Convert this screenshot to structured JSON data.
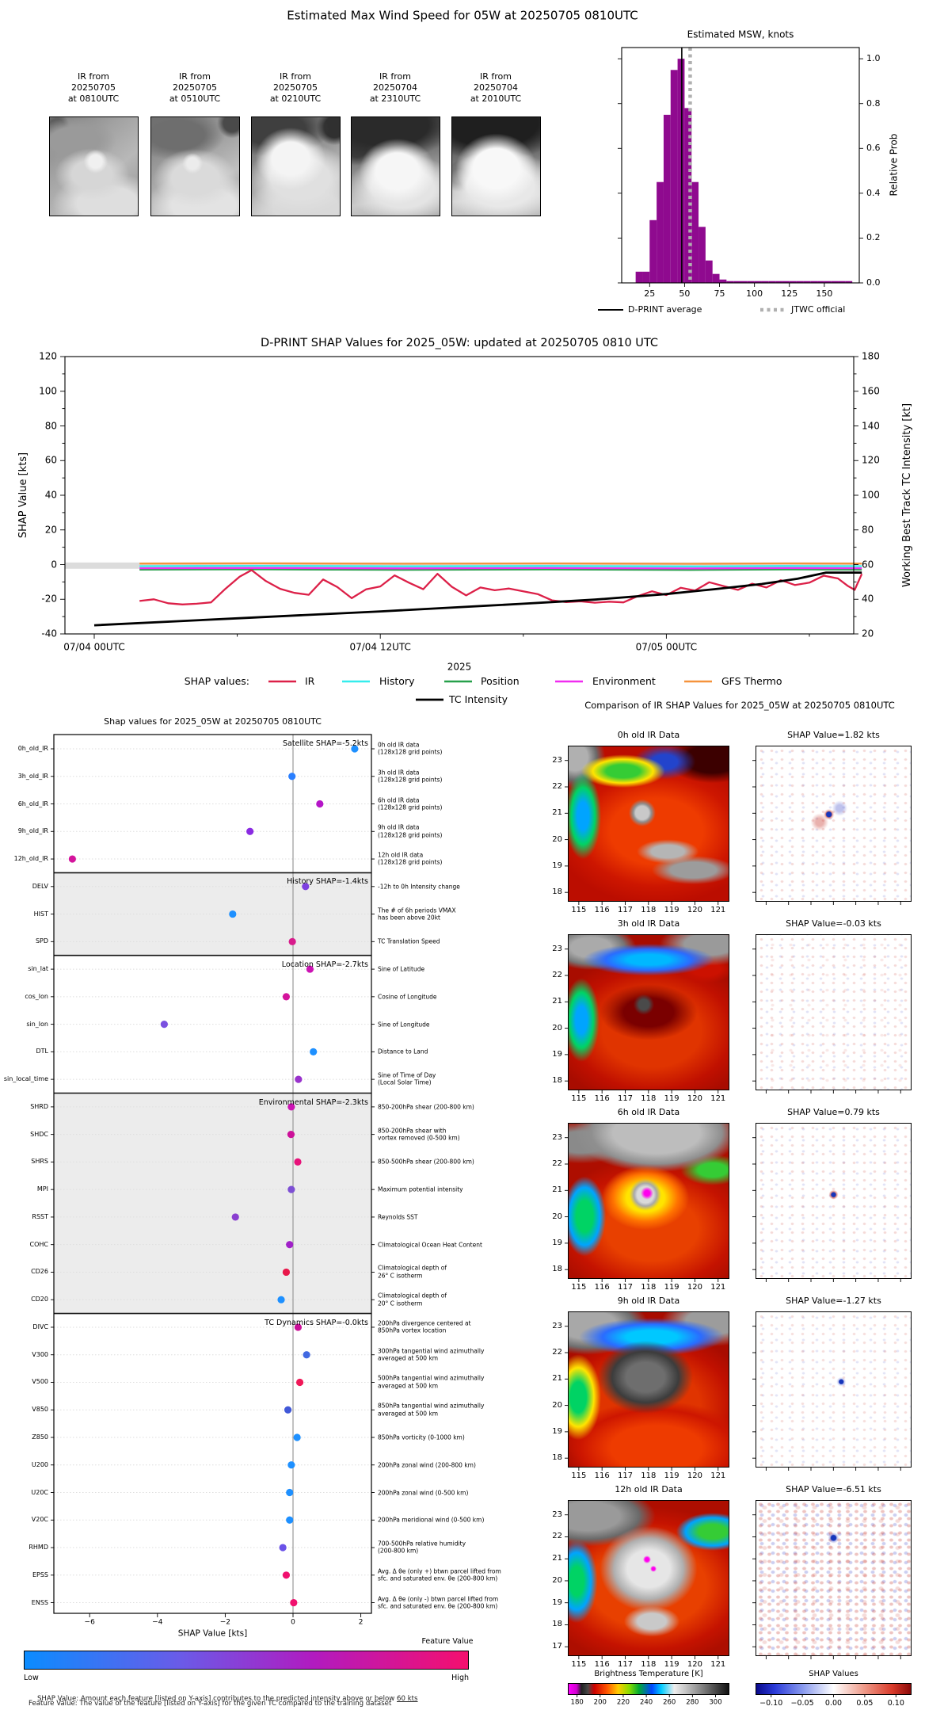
{
  "page_title": "Estimated Max Wind Speed for 05W at 20250705 0810UTC",
  "thumbnails": {
    "items": [
      {
        "label": "IR from\n20250705\nat 0810UTC"
      },
      {
        "label": "IR from\n20250705\nat 0510UTC"
      },
      {
        "label": "IR from\n20250705\nat 0210UTC"
      },
      {
        "label": "IR from\n20250704\nat 2310UTC"
      },
      {
        "label": "IR from\n20250704\nat 2010UTC"
      }
    ]
  },
  "chart_data": [
    {
      "id": "msw_histogram",
      "type": "bar",
      "title": "Estimated MSW, knots",
      "ylabel": "Relative Prob",
      "xlim": [
        5,
        175
      ],
      "ylim": [
        0,
        1.05
      ],
      "xticks": [
        25,
        50,
        75,
        100,
        125,
        150
      ],
      "yticks": [
        "0.0",
        "0.2",
        "0.4",
        "0.6",
        "0.8",
        "1.0"
      ],
      "bar_color": "#8f0a8f",
      "bin_width": 5,
      "bins_start": [
        15,
        20,
        25,
        30,
        35,
        40,
        45,
        50,
        55,
        60,
        65,
        70,
        75,
        80,
        85,
        90,
        95,
        100,
        105,
        110,
        115,
        120,
        125,
        130,
        135,
        140,
        145,
        150,
        155,
        160,
        165
      ],
      "heights": [
        0.05,
        0.05,
        0.28,
        0.45,
        0.75,
        0.95,
        1.0,
        0.78,
        0.45,
        0.25,
        0.1,
        0.04,
        0.015,
        0.008,
        0.008,
        0.008,
        0.008,
        0.008,
        0.008,
        0.008,
        0.008,
        0.008,
        0.008,
        0.008,
        0.008,
        0.008,
        0.008,
        0.008,
        0.008,
        0.008,
        0.008
      ],
      "vlines": [
        {
          "label": "D-PRINT average",
          "x": 48,
          "style": "solid",
          "color": "#000000"
        },
        {
          "label": "JTWC official",
          "x": 54,
          "style": "dotted",
          "color": "#b0b0b0"
        }
      ]
    },
    {
      "id": "shap_timeseries",
      "type": "line",
      "title": "D-PRINT SHAP Values for 2025_05W: updated at 20250705 0810 UTC",
      "ylabel_left": "SHAP Value [kts]",
      "ylabel_right": "Working Best Track TC Intensity [kt]",
      "xlabel": "2025",
      "ylim_left": [
        -40,
        120
      ],
      "ylim_right": [
        20,
        180
      ],
      "yticks_left": [
        "120",
        "100",
        "80",
        "60",
        "40",
        "20",
        "0",
        "-20",
        "-40"
      ],
      "yticks_right": [
        "180",
        "160",
        "140",
        "120",
        "100",
        "80",
        "60",
        "40",
        "20"
      ],
      "x_hours_range": [
        -1.2,
        32.2
      ],
      "xticks": [
        {
          "h": 0,
          "label": "07/04 00UTC"
        },
        {
          "h": 12,
          "label": "07/04 12UTC"
        },
        {
          "h": 24,
          "label": "07/05 00UTC"
        }
      ],
      "zero_band": [
        -2.4,
        1.2
      ],
      "legend_title": "SHAP values:",
      "series": [
        {
          "name": "IR",
          "color": "#dc2048",
          "points": [
            [
              1.9,
              -21
            ],
            [
              2.5,
              -20
            ],
            [
              3.1,
              -22.3
            ],
            [
              3.7,
              -23
            ],
            [
              4.3,
              -22.6
            ],
            [
              4.9,
              -21.8
            ],
            [
              5.5,
              -14
            ],
            [
              6.1,
              -7
            ],
            [
              6.6,
              -3.2
            ],
            [
              7.2,
              -9.5
            ],
            [
              7.8,
              -14
            ],
            [
              8.4,
              -16.3
            ],
            [
              9.0,
              -17.4
            ],
            [
              9.6,
              -8.6
            ],
            [
              10.2,
              -13
            ],
            [
              10.8,
              -19.4
            ],
            [
              11.4,
              -14.3
            ],
            [
              12.0,
              -12.6
            ],
            [
              12.6,
              -6.2
            ],
            [
              13.2,
              -10.4
            ],
            [
              13.8,
              -14.2
            ],
            [
              14.4,
              -5.3
            ],
            [
              15.0,
              -12.8
            ],
            [
              15.6,
              -17.8
            ],
            [
              16.2,
              -13.2
            ],
            [
              16.8,
              -14.8
            ],
            [
              17.4,
              -13.8
            ],
            [
              18.0,
              -15.4
            ],
            [
              18.6,
              -17
            ],
            [
              19.2,
              -20.6
            ],
            [
              19.8,
              -21.6
            ],
            [
              20.4,
              -21.2
            ],
            [
              21.0,
              -22
            ],
            [
              21.6,
              -21.4
            ],
            [
              22.2,
              -21.8
            ],
            [
              22.8,
              -18.2
            ],
            [
              23.4,
              -15.4
            ],
            [
              24.0,
              -17.6
            ],
            [
              24.6,
              -13.4
            ],
            [
              25.2,
              -15
            ],
            [
              25.8,
              -10.2
            ],
            [
              26.4,
              -12.4
            ],
            [
              27.0,
              -14.6
            ],
            [
              27.6,
              -11
            ],
            [
              28.2,
              -13.2
            ],
            [
              28.8,
              -9
            ],
            [
              29.4,
              -11.8
            ],
            [
              30.0,
              -10.4
            ],
            [
              30.6,
              -6.4
            ],
            [
              31.2,
              -8
            ],
            [
              31.6,
              -12.2
            ],
            [
              31.9,
              -14.6
            ],
            [
              32.2,
              -5.4
            ]
          ]
        },
        {
          "name": "History",
          "color": "#35eded",
          "const": -0.9
        },
        {
          "name": "Position",
          "color": "#27a04a",
          "const": -2.9
        },
        {
          "name": "Environment",
          "color": "#f02cf0",
          "const": -2.1
        },
        {
          "name": "GFS Thermo",
          "color": "#f5933c",
          "const": 0.6
        },
        {
          "name": "TC Intensity",
          "color": "#000000",
          "points": [
            [
              0,
              -35
            ],
            [
              6,
              -31
            ],
            [
              12,
              -27
            ],
            [
              18,
              -22.6
            ],
            [
              21,
              -20.2
            ],
            [
              24,
              -17
            ],
            [
              26,
              -14.2
            ],
            [
              28,
              -11.2
            ],
            [
              29.5,
              -8.2
            ],
            [
              30.7,
              -4.6
            ],
            [
              32.2,
              -4.6
            ]
          ]
        }
      ]
    },
    {
      "id": "shap_dotplot",
      "type": "scatter",
      "title": "Shap values for 2025_05W at 20250705 0810UTC",
      "xlabel": "SHAP Value [kts]",
      "xticks": [
        {
          "v": -6,
          "label": "−6"
        },
        {
          "v": -4,
          "label": "−4"
        },
        {
          "v": -2,
          "label": "−2"
        },
        {
          "v": 0,
          "label": "0"
        },
        {
          "v": 2,
          "label": "2"
        }
      ],
      "sections": [
        {
          "header": "Satellite SHAP=-5.2kts",
          "shaded": false,
          "rows": [
            {
              "label": "0h_old_IR",
              "desc": "0h old IR data\n(128x128 grid points)",
              "value": 1.82,
              "color": "#1e90ff"
            },
            {
              "label": "3h_old_IR",
              "desc": "3h old IR data\n(128x128 grid points)",
              "value": -0.03,
              "color": "#2a7fff"
            },
            {
              "label": "6h_old_IR",
              "desc": "6h old IR data\n(128x128 grid points)",
              "value": 0.79,
              "color": "#b515c8"
            },
            {
              "label": "9h_old_IR",
              "desc": "9h old IR data\n(128x128 grid points)",
              "value": -1.27,
              "color": "#8a2be2"
            },
            {
              "label": "12h_old_IR",
              "desc": "12h old IR data\n(128x128 grid points)",
              "value": -6.51,
              "color": "#d4149c"
            }
          ]
        },
        {
          "header": "History SHAP=-1.4kts",
          "shaded": true,
          "rows": [
            {
              "label": "DELV",
              "desc": "-12h to 0h Intensity change",
              "value": 0.37,
              "color": "#7d3fe0"
            },
            {
              "label": "HIST",
              "desc": "The # of 6h periods VMAX\nhas been above 20kt",
              "value": -1.78,
              "color": "#1e90ff"
            },
            {
              "label": "SPD",
              "desc": "TC Translation Speed",
              "value": -0.02,
              "color": "#d81b8c"
            }
          ]
        },
        {
          "header": "Location SHAP=-2.7kts",
          "shaded": false,
          "rows": [
            {
              "label": "sin_lat",
              "desc": "Sine of Latitude",
              "value": 0.5,
              "color": "#cc14b4"
            },
            {
              "label": "cos_lon",
              "desc": "Cosine of Longitude",
              "value": -0.2,
              "color": "#d4149c"
            },
            {
              "label": "sin_lon",
              "desc": "Sine of Longitude",
              "value": -3.8,
              "color": "#7a50e0"
            },
            {
              "label": "DTL",
              "desc": "Distance to Land",
              "value": 0.6,
              "color": "#1e90ff"
            },
            {
              "label": "sin_local_time",
              "desc": "Sine of Time of Day\n(Local Solar Time)",
              "value": 0.16,
              "color": "#9932cc"
            }
          ]
        },
        {
          "header": "Environmental SHAP=-2.3kts",
          "shaded": true,
          "rows": [
            {
              "label": "SHRD",
              "desc": "850-200hPa shear (200-800 km)",
              "value": -0.05,
              "color": "#cc14b4"
            },
            {
              "label": "SHDC",
              "desc": "850-200hPa shear with\nvortex removed (0-500 km)",
              "value": -0.06,
              "color": "#cc1099"
            },
            {
              "label": "SHRS",
              "desc": "850-500hPa shear (200-800 km)",
              "value": 0.14,
              "color": "#e8117a"
            },
            {
              "label": "MPI",
              "desc": "Maximum potential intensity",
              "value": -0.05,
              "color": "#7d4fd4"
            },
            {
              "label": "RSST",
              "desc": "Reynolds SST",
              "value": -1.7,
              "color": "#8a3fd0"
            },
            {
              "label": "COHC",
              "desc": "Climatological Ocean Heat Content",
              "value": -0.1,
              "color": "#a020c8"
            },
            {
              "label": "CD26",
              "desc": "Climatological depth of\n26° C isotherm",
              "value": -0.2,
              "color": "#e8174a"
            },
            {
              "label": "CD20",
              "desc": "Climatological depth of\n20° C isotherm",
              "value": -0.35,
              "color": "#1e90ff"
            }
          ]
        },
        {
          "header": "TC Dynamics SHAP=-0.0kts",
          "shaded": false,
          "rows": [
            {
              "label": "DIVC",
              "desc": "200hPa divergence centered at\n850hPa vortex location",
              "value": 0.15,
              "color": "#cc1099"
            },
            {
              "label": "V300",
              "desc": "300hPa tangential wind azimuthally\naveraged at 500 km",
              "value": 0.4,
              "color": "#4169e1"
            },
            {
              "label": "V500",
              "desc": "500hPa tangential wind azimuthally\naveraged at 500 km",
              "value": 0.2,
              "color": "#f01858"
            },
            {
              "label": "V850",
              "desc": "850hPa tangential wind azimuthally\naveraged at 500 km",
              "value": -0.15,
              "color": "#4158d8"
            },
            {
              "label": "Z850",
              "desc": "850hPa vorticity (0-1000 km)",
              "value": 0.12,
              "color": "#1e90ff"
            },
            {
              "label": "U200",
              "desc": "200hPa zonal wind (200-800 km)",
              "value": -0.05,
              "color": "#1e90ff"
            },
            {
              "label": "U20C",
              "desc": "200hPa zonal wind (0-500 km)",
              "value": -0.1,
              "color": "#1e90ff"
            },
            {
              "label": "V20C",
              "desc": "200hPa meridional wind (0-500 km)",
              "value": -0.1,
              "color": "#1e90ff"
            },
            {
              "label": "RHMD",
              "desc": "700-500hPa relative humidity\n(200-800 km)",
              "value": -0.3,
              "color": "#6a52e8"
            },
            {
              "label": "EPSS",
              "desc": "Avg. Δ θe (only +) btwn parcel lifted from\nsfc. and saturated env. θe (200-800 km)",
              "value": -0.2,
              "color": "#f0106e"
            },
            {
              "label": "ENSS",
              "desc": "Avg. Δ θe (only -) btwn parcel lifted from\nsfc. and saturated env. θe (200-800 km)",
              "value": 0.02,
              "color": "#f0106e"
            }
          ]
        }
      ]
    }
  ],
  "ir_comparison": {
    "title": "Comparison of IR SHAP Values for 2025_05W at 20250705 0810UTC",
    "lon_ticks": [
      "115",
      "116",
      "117",
      "118",
      "119",
      "120",
      "121"
    ],
    "rows": [
      {
        "ir_title": "0h old IR Data",
        "shap_title": "SHAP Value=1.82 kts",
        "lat_ticks": [
          "23",
          "22",
          "21",
          "20",
          "19",
          "18"
        ]
      },
      {
        "ir_title": "3h old IR Data",
        "shap_title": "SHAP Value=-0.03 kts",
        "lat_ticks": [
          "23",
          "22",
          "21",
          "20",
          "19",
          "18"
        ]
      },
      {
        "ir_title": "6h old IR Data",
        "shap_title": "SHAP Value=0.79 kts",
        "lat_ticks": [
          "23",
          "22",
          "21",
          "20",
          "19",
          "18"
        ]
      },
      {
        "ir_title": "9h old IR Data",
        "shap_title": "SHAP Value=-1.27 kts",
        "lat_ticks": [
          "23",
          "22",
          "21",
          "20",
          "19",
          "18"
        ]
      },
      {
        "ir_title": "12h old IR Data",
        "shap_title": "SHAP Value=-6.51 kts",
        "lat_ticks": [
          "23",
          "22",
          "21",
          "20",
          "19",
          "18",
          "17"
        ]
      }
    ],
    "bt_colorbar": {
      "label": "Brightness Temperature [K]",
      "ticks": [
        "180",
        "200",
        "220",
        "240",
        "260",
        "280",
        "300"
      ]
    },
    "shap_colorbar": {
      "label": "SHAP Values",
      "ticks": [
        "−0.10",
        "−0.05",
        "0.00",
        "0.05",
        "0.10"
      ]
    }
  },
  "feature_colorbar": {
    "label": "Feature Value",
    "low": "Low",
    "high": "High"
  },
  "footer": {
    "note1_prefix": "SHAP Value: Amount each feature [listed on Y-axis] contributes to the predicted intensity above or below ",
    "note1_underline": "60 kts",
    "note2": "Feature Value: The value of the feature [listed on Y-axis] for the given TC compared to the training dataset"
  }
}
